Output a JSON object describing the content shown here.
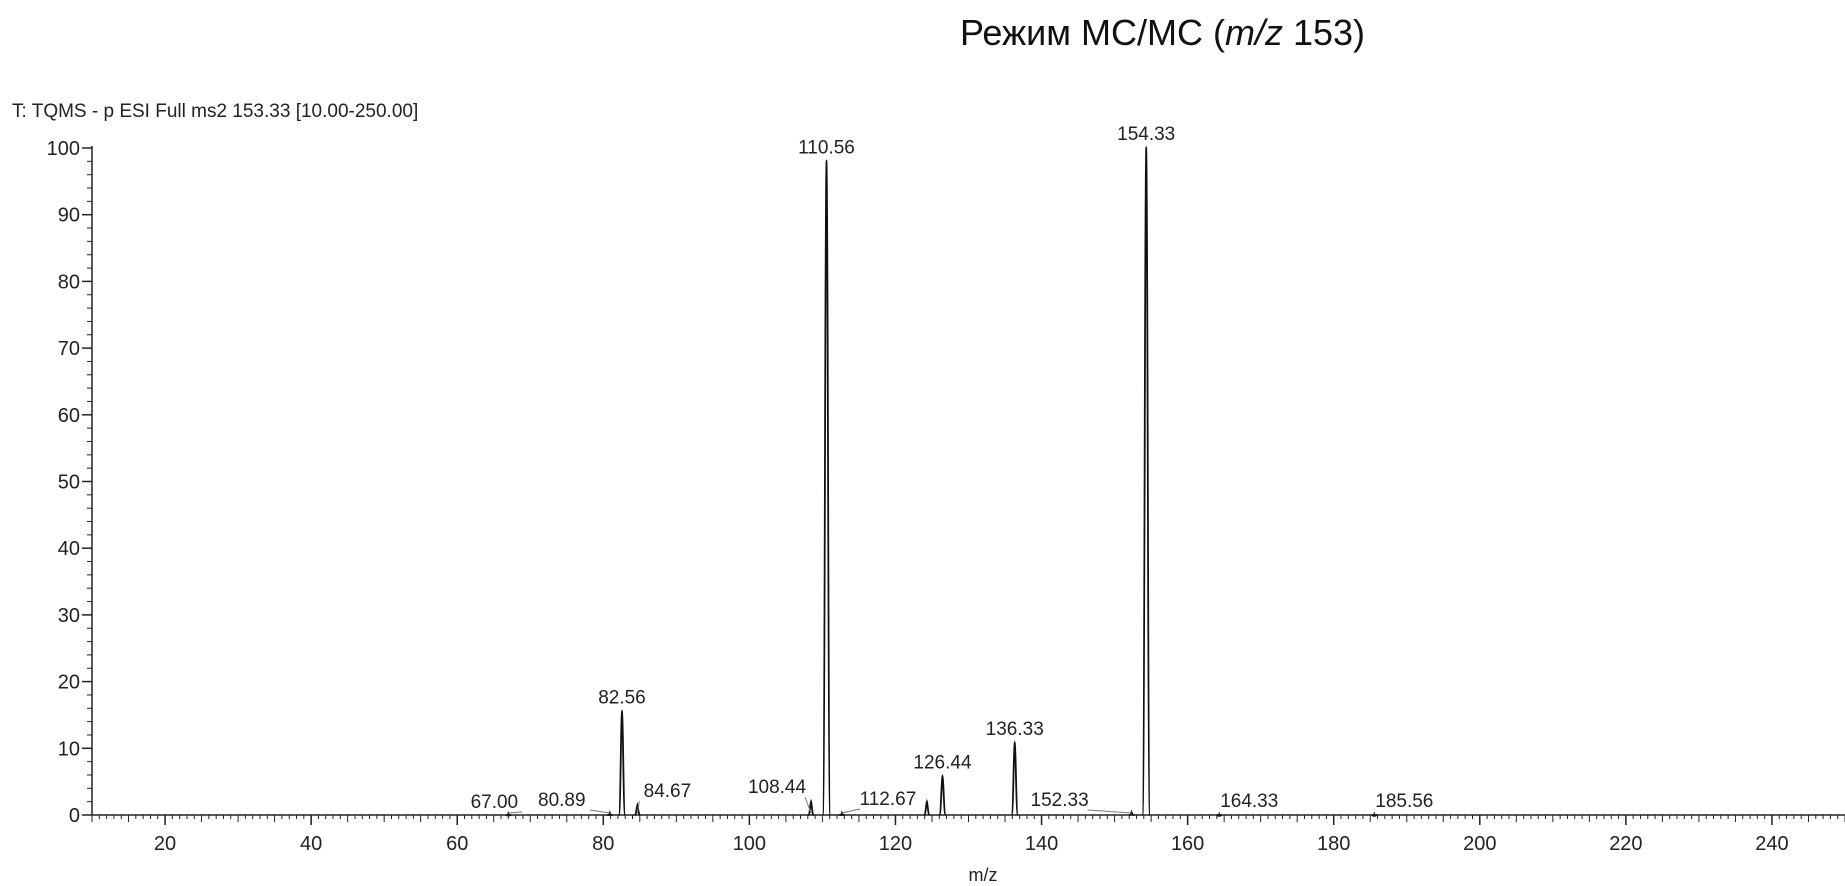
{
  "page_title": {
    "prefix": "Режим МС/МС (",
    "mz_italic": "m/z",
    "suffix": " 153)"
  },
  "chart_data": {
    "type": "line",
    "header": "T: TQMS - p ESI Full ms2 153.33 [10.00-250.00]",
    "xlabel": "m/z",
    "ylabel": "",
    "xlim": [
      10,
      250
    ],
    "ylim": [
      0,
      100
    ],
    "x_ticks": [
      20,
      40,
      60,
      80,
      100,
      120,
      140,
      160,
      180,
      200,
      220,
      240
    ],
    "y_ticks": [
      0,
      10,
      20,
      30,
      40,
      50,
      60,
      70,
      80,
      90,
      100
    ],
    "grid": false,
    "peaks": [
      {
        "mz": 67.0,
        "intensity": 0.2,
        "label": "67.00"
      },
      {
        "mz": 80.89,
        "intensity": 0.3,
        "label": "80.89"
      },
      {
        "mz": 82.56,
        "intensity": 15.5,
        "label": "82.56"
      },
      {
        "mz": 84.67,
        "intensity": 1.5,
        "label": "84.67"
      },
      {
        "mz": 108.44,
        "intensity": 2.0,
        "label": "108.44"
      },
      {
        "mz": 110.56,
        "intensity": 98,
        "label": "110.56"
      },
      {
        "mz": 112.67,
        "intensity": 0.3,
        "label": "112.67"
      },
      {
        "mz": 124.3,
        "intensity": 2.0,
        "label": ""
      },
      {
        "mz": 126.44,
        "intensity": 5.8,
        "label": "126.44"
      },
      {
        "mz": 136.33,
        "intensity": 10.8,
        "label": "136.33"
      },
      {
        "mz": 152.33,
        "intensity": 0.4,
        "label": "152.33"
      },
      {
        "mz": 154.33,
        "intensity": 100,
        "label": "154.33"
      },
      {
        "mz": 164.33,
        "intensity": 0.1,
        "label": "164.33"
      },
      {
        "mz": 185.56,
        "intensity": 0.1,
        "label": "185.56"
      }
    ]
  }
}
